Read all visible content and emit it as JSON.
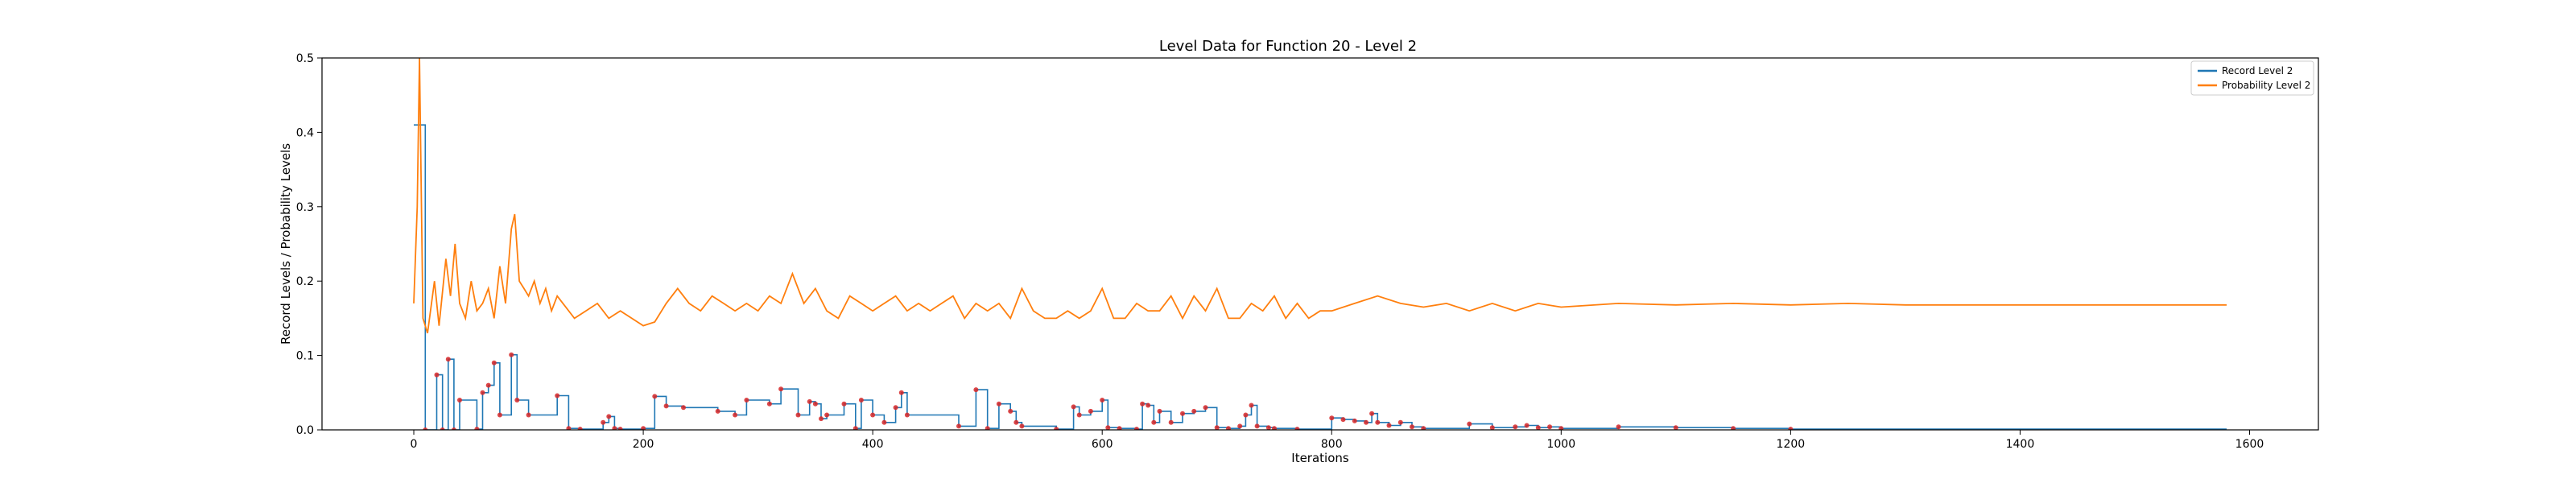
{
  "chart_data": {
    "type": "line",
    "title": "Level Data for Function 20 - Level 2",
    "xlabel": "Iterations",
    "ylabel": "Record Levels / Probability Levels",
    "xlim": [
      -80,
      1660
    ],
    "ylim": [
      0,
      0.5
    ],
    "xticks": [
      "0",
      "200",
      "400",
      "600",
      "800",
      "1000",
      "1200",
      "1400",
      "1600"
    ],
    "yticks": [
      "0.0",
      "0.1",
      "0.2",
      "0.3",
      "0.4",
      "0.5"
    ],
    "legend_position": "top-right",
    "grid": false,
    "series": [
      {
        "name": "Record Level 2",
        "color": "#1f77b4",
        "style": "step",
        "x": [
          0,
          5,
          10,
          20,
          25,
          30,
          35,
          40,
          55,
          60,
          65,
          70,
          75,
          85,
          90,
          95,
          100,
          125,
          135,
          140,
          145,
          165,
          170,
          175,
          180,
          200,
          210,
          220,
          235,
          250,
          265,
          280,
          290,
          310,
          320,
          335,
          345,
          350,
          355,
          360,
          375,
          385,
          390,
          400,
          410,
          420,
          425,
          430,
          460,
          475,
          490,
          500,
          510,
          520,
          525,
          530,
          540,
          560,
          575,
          580,
          590,
          600,
          605,
          615,
          630,
          635,
          640,
          645,
          650,
          660,
          670,
          680,
          690,
          700,
          710,
          720,
          725,
          730,
          735,
          745,
          750,
          760,
          770,
          780,
          790,
          800,
          810,
          820,
          830,
          835,
          840,
          850,
          860,
          870,
          880,
          900,
          920,
          940,
          960,
          970,
          980,
          990,
          1000,
          1050,
          1100,
          1150,
          1200,
          1300,
          1400,
          1500,
          1580
        ],
        "y": [
          0.41,
          0.41,
          0.0,
          0.074,
          0.0,
          0.095,
          0.0,
          0.04,
          0.001,
          0.05,
          0.06,
          0.09,
          0.02,
          0.101,
          0.04,
          0.04,
          0.02,
          0.046,
          0.002,
          0.002,
          0.001,
          0.01,
          0.018,
          0.002,
          0.001,
          0.002,
          0.045,
          0.032,
          0.03,
          0.03,
          0.025,
          0.02,
          0.04,
          0.035,
          0.055,
          0.02,
          0.038,
          0.035,
          0.015,
          0.02,
          0.035,
          0.002,
          0.04,
          0.02,
          0.01,
          0.03,
          0.05,
          0.02,
          0.02,
          0.005,
          0.054,
          0.002,
          0.035,
          0.025,
          0.01,
          0.005,
          0.005,
          0.001,
          0.031,
          0.02,
          0.025,
          0.04,
          0.003,
          0.002,
          0.001,
          0.035,
          0.033,
          0.01,
          0.025,
          0.01,
          0.022,
          0.025,
          0.03,
          0.003,
          0.002,
          0.005,
          0.02,
          0.033,
          0.005,
          0.003,
          0.002,
          0.002,
          0.001,
          0.001,
          0.001,
          0.016,
          0.014,
          0.012,
          0.01,
          0.022,
          0.01,
          0.006,
          0.01,
          0.004,
          0.002,
          0.002,
          0.008,
          0.003,
          0.004,
          0.006,
          0.003,
          0.004,
          0.002,
          0.004,
          0.003,
          0.002,
          0.001,
          0.001,
          0.001,
          0.001,
          0.001
        ]
      },
      {
        "name": "Probability Level 2",
        "color": "#ff7f0e",
        "style": "line",
        "x": [
          0,
          3,
          5,
          8,
          12,
          18,
          22,
          28,
          32,
          36,
          40,
          45,
          50,
          55,
          60,
          65,
          70,
          75,
          80,
          85,
          88,
          92,
          96,
          100,
          105,
          110,
          115,
          120,
          125,
          130,
          140,
          150,
          160,
          170,
          180,
          190,
          200,
          210,
          220,
          230,
          240,
          250,
          260,
          270,
          280,
          290,
          300,
          310,
          320,
          330,
          340,
          350,
          360,
          370,
          380,
          390,
          400,
          410,
          420,
          430,
          440,
          450,
          460,
          470,
          480,
          490,
          500,
          510,
          520,
          530,
          540,
          550,
          560,
          570,
          580,
          590,
          600,
          610,
          620,
          630,
          640,
          650,
          660,
          670,
          680,
          690,
          700,
          710,
          720,
          730,
          740,
          750,
          760,
          770,
          780,
          790,
          800,
          820,
          840,
          860,
          880,
          900,
          920,
          940,
          960,
          980,
          1000,
          1050,
          1100,
          1150,
          1200,
          1250,
          1300,
          1350,
          1400,
          1450,
          1500,
          1550,
          1580
        ],
        "y": [
          0.17,
          0.3,
          0.5,
          0.15,
          0.13,
          0.2,
          0.14,
          0.23,
          0.18,
          0.25,
          0.17,
          0.15,
          0.2,
          0.16,
          0.17,
          0.19,
          0.15,
          0.22,
          0.17,
          0.27,
          0.29,
          0.2,
          0.19,
          0.18,
          0.2,
          0.17,
          0.19,
          0.16,
          0.18,
          0.17,
          0.15,
          0.16,
          0.17,
          0.15,
          0.16,
          0.15,
          0.14,
          0.145,
          0.17,
          0.19,
          0.17,
          0.16,
          0.18,
          0.17,
          0.16,
          0.17,
          0.16,
          0.18,
          0.17,
          0.21,
          0.17,
          0.19,
          0.16,
          0.15,
          0.18,
          0.17,
          0.16,
          0.17,
          0.18,
          0.16,
          0.17,
          0.16,
          0.17,
          0.18,
          0.15,
          0.17,
          0.16,
          0.17,
          0.15,
          0.19,
          0.16,
          0.15,
          0.15,
          0.16,
          0.15,
          0.16,
          0.19,
          0.15,
          0.15,
          0.17,
          0.16,
          0.16,
          0.18,
          0.15,
          0.18,
          0.16,
          0.19,
          0.15,
          0.15,
          0.17,
          0.16,
          0.18,
          0.15,
          0.17,
          0.15,
          0.16,
          0.16,
          0.17,
          0.18,
          0.17,
          0.165,
          0.17,
          0.16,
          0.17,
          0.16,
          0.17,
          0.165,
          0.17,
          0.168,
          0.17,
          0.168,
          0.17,
          0.168,
          0.168,
          0.168,
          0.168,
          0.168,
          0.168,
          0.168
        ]
      }
    ]
  }
}
